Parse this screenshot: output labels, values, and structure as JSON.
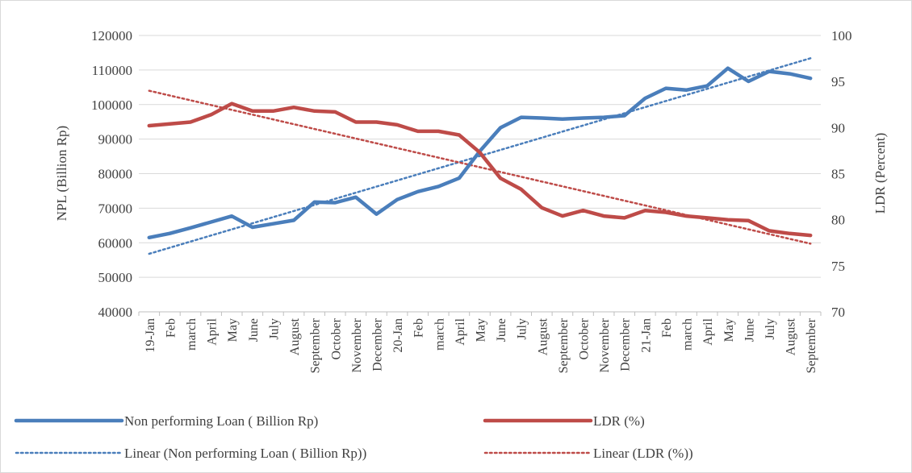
{
  "chart_data": {
    "type": "line",
    "title": "",
    "ylabel_left": "NPL  (Billion Rp)",
    "ylabel_right": "LDR (Percent)",
    "ylim_left": [
      40000,
      120000
    ],
    "ylim_right": [
      70,
      100
    ],
    "yticks_left": [
      40000,
      50000,
      60000,
      70000,
      80000,
      90000,
      100000,
      110000,
      120000
    ],
    "yticks_right": [
      70,
      75,
      80,
      85,
      90,
      95,
      100
    ],
    "grid": true,
    "legend_position": "bottom",
    "categories": [
      "19-Jan",
      "Feb",
      "march",
      "April",
      "May",
      "June",
      "July",
      "August",
      "September",
      "October",
      "November",
      "December",
      "20-Jan",
      "Feb",
      "march",
      "April",
      "May",
      "June",
      "July",
      "August",
      "September",
      "October",
      "November",
      "December",
      "21-Jan",
      "Feb",
      "march",
      "April",
      "May",
      "June",
      "July",
      "August",
      "September"
    ],
    "series": [
      {
        "name": "Non performing Loan ( Billion Rp)",
        "axis": "left",
        "color": "#4a7ebb",
        "style": "solid",
        "values": [
          61500,
          62700,
          64300,
          66000,
          67700,
          64500,
          65500,
          66500,
          71800,
          71600,
          73200,
          68300,
          72500,
          74800,
          76300,
          78700,
          86500,
          93300,
          96300,
          96100,
          95800,
          96100,
          96300,
          96800,
          101800,
          104700,
          104200,
          105400,
          110500,
          106700,
          109600,
          108900,
          107600
        ]
      },
      {
        "name": "LDR (%)",
        "axis": "right",
        "color": "#be4b48",
        "style": "solid",
        "values": [
          90.2,
          90.4,
          90.6,
          91.4,
          92.6,
          91.8,
          91.8,
          92.2,
          91.8,
          91.7,
          90.6,
          90.6,
          90.3,
          89.6,
          89.6,
          89.2,
          87.3,
          84.5,
          83.3,
          81.3,
          80.4,
          81.0,
          80.4,
          80.2,
          81.0,
          80.8,
          80.4,
          80.2,
          80.0,
          79.9,
          78.8,
          78.5,
          78.3
        ]
      }
    ],
    "trendlines": [
      {
        "name": "Linear (Non performing Loan ( Billion Rp))",
        "axis": "left",
        "color": "#4a7ebb",
        "style": "dotted",
        "from": 56800,
        "to": 113400
      },
      {
        "name": "Linear (LDR (%))",
        "axis": "right",
        "color": "#be4b48",
        "style": "dotted",
        "from": 94.0,
        "to": 77.4
      }
    ]
  }
}
